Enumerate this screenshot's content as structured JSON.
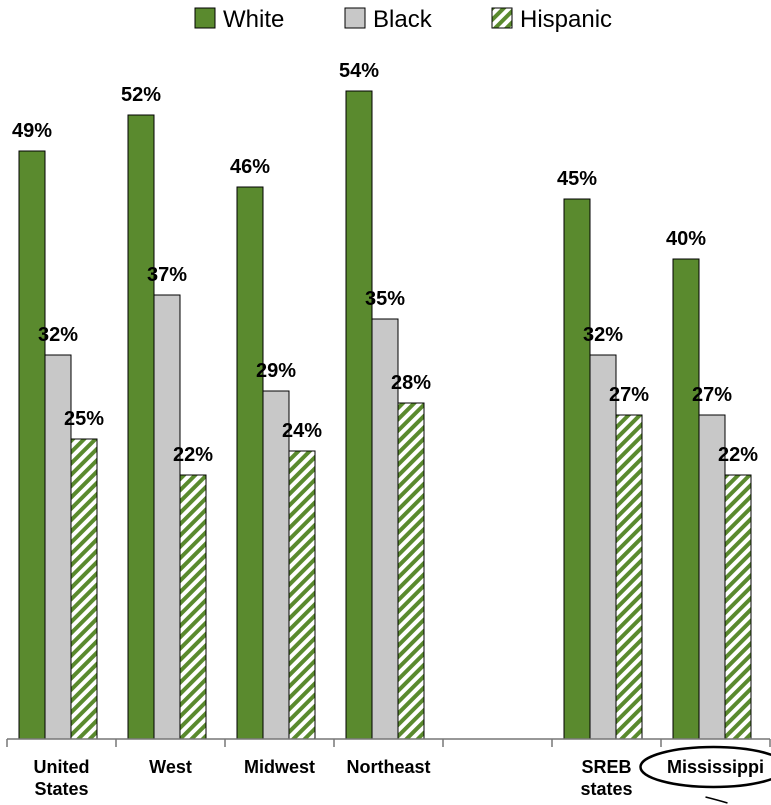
{
  "chart_data": {
    "type": "bar",
    "categories": [
      {
        "lines": [
          "United",
          "States"
        ],
        "highlighted": false
      },
      {
        "lines": [
          "West"
        ],
        "highlighted": false
      },
      {
        "lines": [
          "Midwest"
        ],
        "highlighted": false
      },
      {
        "lines": [
          "Northeast"
        ],
        "highlighted": false
      },
      {
        "lines": [],
        "highlighted": false
      },
      {
        "lines": [
          "SREB",
          "states"
        ],
        "highlighted": false
      },
      {
        "lines": [
          "Mississippi"
        ],
        "highlighted": true
      }
    ],
    "series": [
      {
        "name": "White",
        "color": "#5a8a2e",
        "pattern": "solid",
        "values": [
          49,
          52,
          46,
          54,
          null,
          45,
          40
        ]
      },
      {
        "name": "Black",
        "color": "#c8c8c8",
        "pattern": "solid",
        "values": [
          32,
          37,
          29,
          35,
          null,
          32,
          27
        ]
      },
      {
        "name": "Hispanic",
        "color": "#5a8a2e",
        "pattern": "diagonal-stripes",
        "values": [
          25,
          22,
          24,
          28,
          null,
          27,
          22
        ]
      }
    ],
    "value_suffix": "%",
    "ylim": [
      0,
      54
    ],
    "grid": false,
    "legend_position": "top-center",
    "title": "",
    "xlabel": "",
    "ylabel": ""
  }
}
